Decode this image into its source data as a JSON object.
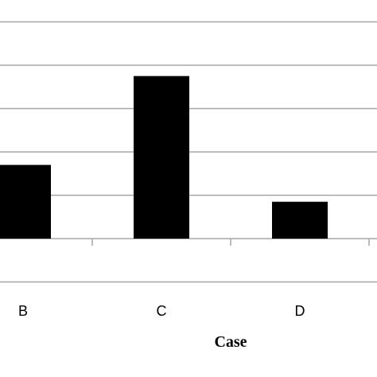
{
  "chart_data": {
    "type": "bar",
    "categories": [
      "B",
      "C",
      "D"
    ],
    "values": [
      1.7,
      3.75,
      0.85
    ],
    "title": "",
    "xlabel": "Case",
    "ylabel": "",
    "ylim": [
      -1,
      5.5
    ],
    "gridlines": [
      -1,
      0,
      1,
      2,
      3,
      4,
      5
    ],
    "grid": true,
    "legend": "none",
    "bar_color": "#000000",
    "grid_color": "#a6a6a6"
  }
}
